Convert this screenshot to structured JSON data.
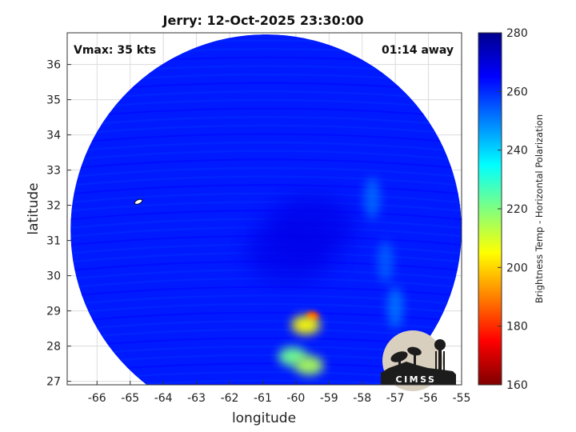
{
  "chart_data": {
    "type": "heatmap",
    "title": "Jerry: 12-Oct-2025 23:30:00",
    "xlabel": "longitude",
    "ylabel": "latitude",
    "xlim": [
      -66.9,
      -55
    ],
    "ylim": [
      26.9,
      36.9
    ],
    "xticks": [
      -66,
      -65,
      -64,
      -63,
      -62,
      -61,
      -60,
      -59,
      -58,
      -57,
      -56,
      -55
    ],
    "yticks": [
      27,
      28,
      29,
      30,
      31,
      32,
      33,
      34,
      35,
      36
    ],
    "grid": true,
    "annotations": {
      "top_left": "Vmax: 35 kts",
      "top_right": "01:14 away"
    },
    "colorbar": {
      "label": "Brightness Temp - Horizontal Polarization",
      "range": [
        160,
        280
      ],
      "ticks": [
        160,
        180,
        200,
        220,
        240,
        260,
        280
      ],
      "colors": [
        "#7f0000",
        "#ff0000",
        "#ff8000",
        "#ffff00",
        "#80ff80",
        "#00ffff",
        "#0080ff",
        "#0000ff",
        "#00008f"
      ]
    },
    "swath": {
      "center_lon": -60.9,
      "center_lat": 31.3,
      "radius_deg_lon": 5.9,
      "radius_deg_lat": 5.5,
      "background_value": 262
    },
    "features": [
      {
        "kind": "cold-core",
        "lon": -59.5,
        "lat": 28.85,
        "value": 180
      },
      {
        "kind": "convection",
        "lon": -59.7,
        "lat": 28.6,
        "value": 205
      },
      {
        "kind": "convection",
        "lon": -60.1,
        "lat": 27.7,
        "value": 222
      },
      {
        "kind": "convection",
        "lon": -59.6,
        "lat": 27.45,
        "value": 215
      },
      {
        "kind": "warm-band",
        "lon": -59.5,
        "lat": 31.4,
        "value": 268
      },
      {
        "kind": "warm-band",
        "lon": -60.2,
        "lat": 30.7,
        "value": 268
      },
      {
        "kind": "rainband",
        "lon": -57.7,
        "lat": 32.2,
        "value": 248
      },
      {
        "kind": "rainband",
        "lon": -57.3,
        "lat": 30.4,
        "value": 250
      },
      {
        "kind": "rainband",
        "lon": -57.0,
        "lat": 29.1,
        "value": 246
      }
    ],
    "storm_center": {
      "lon": -64.75,
      "lat": 32.1
    }
  },
  "logo": {
    "text": "CIMSS"
  }
}
